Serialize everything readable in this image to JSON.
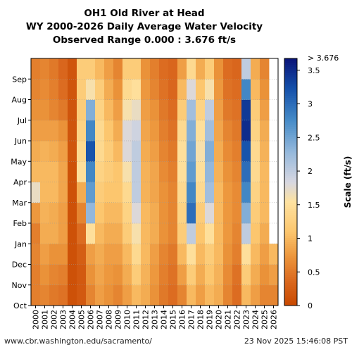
{
  "chart_data": {
    "type": "heatmap",
    "title_lines": [
      "OH1 Old River at Head",
      "WY 2000-2026 Daily Average Water Velocity",
      "Observed Range 0.000 : 3.676 ft/s"
    ],
    "x_categories": [
      "2000",
      "2001",
      "2002",
      "2003",
      "2004",
      "2005",
      "2006",
      "2007",
      "2008",
      "2009",
      "2010",
      "2011",
      "2012",
      "2013",
      "2014",
      "2015",
      "2016",
      "2017",
      "2018",
      "2019",
      "2020",
      "2021",
      "2022",
      "2023",
      "2024",
      "2025",
      "2026"
    ],
    "y_months": [
      "Oct",
      "Nov",
      "Dec",
      "Jan",
      "Feb",
      "Mar",
      "Apr",
      "May",
      "Jun",
      "Jul",
      "Aug",
      "Sep"
    ],
    "colorbar": {
      "label": "Scale (ft/s)",
      "min": 0,
      "max": 3.676,
      "max_label": "> 3.676",
      "ticks": [
        {
          "value": 0,
          "label": "0"
        },
        {
          "value": 0.5,
          "label": "0.5"
        },
        {
          "value": 1,
          "label": "1"
        },
        {
          "value": 1.5,
          "label": "1.5"
        },
        {
          "value": 2,
          "label": "2"
        },
        {
          "value": 2.5,
          "label": "2.5"
        },
        {
          "value": 3,
          "label": "3"
        },
        {
          "value": 3.5,
          "label": "3.5"
        }
      ]
    },
    "monthly_values": [
      [
        0.55,
        0.55,
        0.6,
        0.55,
        0.75,
        1.7,
        1.0,
        0.9,
        0.8,
        0.7,
        0.6,
        0.55
      ],
      [
        0.6,
        0.7,
        0.8,
        0.9,
        0.95,
        1.0,
        1.0,
        0.95,
        0.8,
        0.7,
        0.65,
        0.6
      ],
      [
        0.5,
        0.6,
        0.7,
        0.9,
        0.9,
        1.0,
        1.0,
        0.9,
        0.8,
        0.6,
        0.55,
        0.5
      ],
      [
        0.45,
        0.55,
        0.7,
        0.8,
        0.8,
        0.85,
        0.85,
        0.8,
        0.7,
        0.5,
        0.4,
        0.35
      ],
      [
        0.1,
        0.1,
        0.1,
        0.1,
        0.1,
        0.1,
        0.1,
        0.15,
        0.15,
        0.15,
        0.15,
        0.15
      ],
      [
        0.2,
        0.2,
        0.25,
        0.4,
        0.6,
        0.9,
        1.5,
        1.4,
        1.3,
        1.2,
        1.2,
        1.2
      ],
      [
        0.6,
        0.7,
        0.8,
        1.5,
        2.3,
        2.6,
        2.8,
        3.2,
        2.8,
        2.4,
        1.6,
        1.2
      ],
      [
        0.8,
        0.85,
        0.9,
        1.0,
        1.1,
        1.2,
        1.3,
        1.4,
        1.4,
        1.3,
        1.2,
        1.0
      ],
      [
        0.7,
        0.75,
        0.8,
        0.9,
        1.0,
        1.1,
        1.2,
        1.2,
        1.1,
        1.0,
        0.9,
        0.8
      ],
      [
        0.6,
        0.7,
        0.8,
        0.9,
        1.0,
        1.1,
        1.1,
        1.0,
        0.9,
        0.8,
        0.7,
        0.6
      ],
      [
        0.8,
        0.9,
        1.0,
        1.2,
        1.3,
        1.4,
        1.6,
        1.8,
        1.8,
        1.6,
        1.4,
        1.2
      ],
      [
        1.0,
        1.2,
        1.4,
        1.6,
        1.8,
        2.0,
        2.0,
        2.0,
        1.9,
        1.7,
        1.5,
        1.2
      ],
      [
        0.9,
        0.95,
        1.0,
        1.0,
        1.0,
        0.95,
        0.95,
        0.9,
        0.85,
        0.8,
        0.75,
        0.7
      ],
      [
        0.7,
        0.75,
        0.8,
        0.9,
        0.9,
        0.85,
        0.85,
        0.8,
        0.75,
        0.7,
        0.6,
        0.55
      ],
      [
        0.5,
        0.55,
        0.6,
        0.7,
        0.7,
        0.7,
        0.65,
        0.6,
        0.55,
        0.5,
        0.45,
        0.4
      ],
      [
        0.4,
        0.45,
        0.5,
        0.6,
        0.6,
        0.6,
        0.55,
        0.5,
        0.45,
        0.4,
        0.35,
        0.35
      ],
      [
        0.6,
        0.8,
        1.0,
        1.2,
        1.3,
        1.4,
        1.5,
        1.5,
        1.4,
        1.2,
        1.0,
        0.8
      ],
      [
        1.0,
        1.2,
        1.5,
        2.0,
        3.0,
        2.8,
        2.6,
        2.5,
        2.4,
        2.2,
        1.8,
        1.4
      ],
      [
        0.8,
        0.9,
        1.0,
        1.1,
        1.2,
        1.4,
        1.5,
        1.6,
        1.5,
        1.3,
        1.1,
        0.9
      ],
      [
        1.0,
        1.1,
        1.2,
        1.5,
        1.8,
        2.2,
        2.3,
        2.4,
        2.2,
        2.0,
        1.6,
        1.2
      ],
      [
        0.9,
        0.95,
        1.0,
        1.0,
        1.0,
        1.0,
        0.95,
        0.9,
        0.85,
        0.8,
        0.75,
        0.7
      ],
      [
        0.6,
        0.65,
        0.7,
        0.75,
        0.75,
        0.75,
        0.7,
        0.65,
        0.6,
        0.5,
        0.45,
        0.4
      ],
      [
        0.4,
        0.45,
        0.55,
        0.6,
        0.65,
        0.65,
        0.6,
        0.55,
        0.5,
        0.45,
        0.4,
        0.35
      ],
      [
        1.0,
        1.2,
        1.5,
        2.0,
        2.4,
        2.8,
        3.0,
        3.2,
        3.5,
        3.4,
        2.8,
        2.0
      ],
      [
        0.8,
        0.9,
        1.0,
        1.1,
        1.2,
        1.3,
        1.4,
        1.4,
        1.3,
        1.2,
        1.0,
        0.9
      ],
      [
        0.6,
        0.7,
        0.8,
        0.9,
        1.0,
        1.0,
        1.0,
        0.95,
        0.9,
        0.8,
        0.7,
        0.6
      ],
      [
        0.6,
        0.8,
        1.0,
        null,
        null,
        null,
        null,
        null,
        null,
        null,
        null,
        null
      ]
    ],
    "grid": true,
    "legend": "colorbar-right"
  },
  "footer": {
    "url": "www.cbr.washington.edu/sacramento/",
    "date": "23 Nov 2025 15:46:08 PST"
  }
}
